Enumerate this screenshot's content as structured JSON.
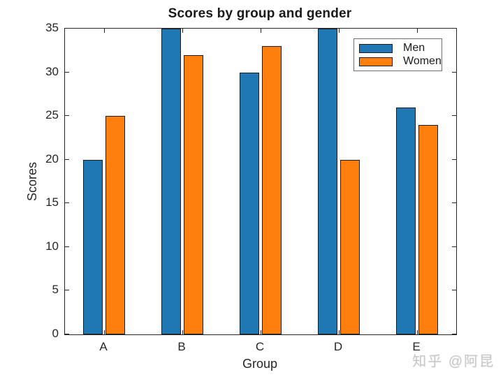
{
  "chart_data": {
    "type": "bar",
    "title": "Scores by group and gender",
    "xlabel": "Group",
    "ylabel": "Scores",
    "categories": [
      "A",
      "B",
      "C",
      "D",
      "E"
    ],
    "series": [
      {
        "name": "Men",
        "color": "#1f77b4",
        "values": [
          20,
          35,
          30,
          35,
          26
        ]
      },
      {
        "name": "Women",
        "color": "#ff7f0e",
        "values": [
          25,
          32,
          33,
          20,
          24
        ]
      }
    ],
    "ylim": [
      0,
      35
    ],
    "yticks": [
      0,
      5,
      10,
      15,
      20,
      25,
      30,
      35
    ],
    "legend_position": "top-right",
    "grid": false,
    "bar_edge_color": "#1f1f1f",
    "axis_color": "#262626"
  },
  "watermark": {
    "text": "知乎 @阿昆"
  }
}
